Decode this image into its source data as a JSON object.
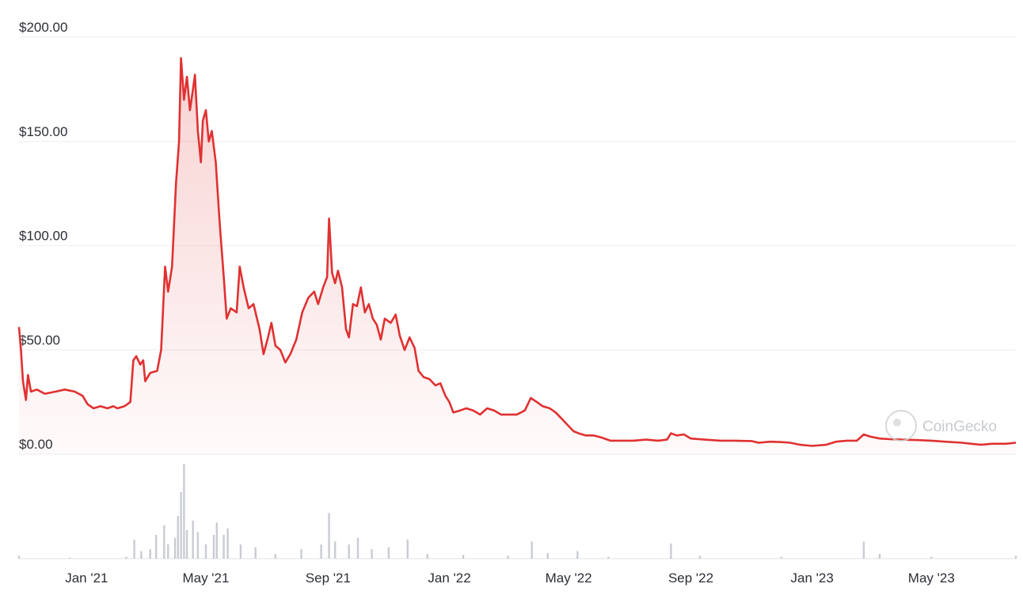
{
  "chart_data": {
    "type": "area",
    "currency_prefix": "$",
    "y_ticks": [
      {
        "value": 0,
        "label": "$0.00"
      },
      {
        "value": 50,
        "label": "$50.00"
      },
      {
        "value": 100,
        "label": "$100.00"
      },
      {
        "value": 150,
        "label": "$150.00"
      },
      {
        "value": 200,
        "label": "$200.00"
      }
    ],
    "ylim": [
      0,
      200
    ],
    "xlim": [
      "2020-10-25",
      "2023-07-25"
    ],
    "x_ticks": [
      {
        "date": "2021-01-01",
        "label": "Jan '21"
      },
      {
        "date": "2021-05-01",
        "label": "May '21"
      },
      {
        "date": "2021-09-01",
        "label": "Sep '21"
      },
      {
        "date": "2022-01-01",
        "label": "Jan '22"
      },
      {
        "date": "2022-05-01",
        "label": "May '22"
      },
      {
        "date": "2022-09-01",
        "label": "Sep '22"
      },
      {
        "date": "2023-01-01",
        "label": "Jan '23"
      },
      {
        "date": "2023-05-01",
        "label": "May '23"
      }
    ],
    "series": [
      {
        "role": "price",
        "color": "#e03131",
        "points": [
          [
            "2020-10-25",
            61
          ],
          [
            "2020-10-27",
            50
          ],
          [
            "2020-10-29",
            35
          ],
          [
            "2020-11-01",
            26
          ],
          [
            "2020-11-03",
            38
          ],
          [
            "2020-11-06",
            30
          ],
          [
            "2020-11-12",
            31
          ],
          [
            "2020-11-20",
            29
          ],
          [
            "2020-12-01",
            30
          ],
          [
            "2020-12-10",
            31
          ],
          [
            "2020-12-20",
            30
          ],
          [
            "2020-12-28",
            28
          ],
          [
            "2021-01-02",
            24
          ],
          [
            "2021-01-08",
            22
          ],
          [
            "2021-01-15",
            23
          ],
          [
            "2021-01-22",
            22
          ],
          [
            "2021-01-28",
            23
          ],
          [
            "2021-02-01",
            22
          ],
          [
            "2021-02-08",
            23
          ],
          [
            "2021-02-14",
            25
          ],
          [
            "2021-02-17",
            45
          ],
          [
            "2021-02-20",
            47
          ],
          [
            "2021-02-24",
            43
          ],
          [
            "2021-02-27",
            45
          ],
          [
            "2021-03-01",
            35
          ],
          [
            "2021-03-06",
            39
          ],
          [
            "2021-03-13",
            40
          ],
          [
            "2021-03-17",
            50
          ],
          [
            "2021-03-21",
            90
          ],
          [
            "2021-03-24",
            78
          ],
          [
            "2021-03-28",
            90
          ],
          [
            "2021-04-01",
            130
          ],
          [
            "2021-04-04",
            150
          ],
          [
            "2021-04-06",
            190
          ],
          [
            "2021-04-09",
            170
          ],
          [
            "2021-04-12",
            181
          ],
          [
            "2021-04-15",
            165
          ],
          [
            "2021-04-18",
            175
          ],
          [
            "2021-04-20",
            182
          ],
          [
            "2021-04-23",
            155
          ],
          [
            "2021-04-26",
            140
          ],
          [
            "2021-04-28",
            160
          ],
          [
            "2021-05-01",
            165
          ],
          [
            "2021-05-04",
            150
          ],
          [
            "2021-05-07",
            155
          ],
          [
            "2021-05-11",
            140
          ],
          [
            "2021-05-15",
            110
          ],
          [
            "2021-05-19",
            85
          ],
          [
            "2021-05-22",
            65
          ],
          [
            "2021-05-26",
            70
          ],
          [
            "2021-06-01",
            68
          ],
          [
            "2021-06-04",
            90
          ],
          [
            "2021-06-08",
            80
          ],
          [
            "2021-06-13",
            70
          ],
          [
            "2021-06-18",
            72
          ],
          [
            "2021-06-24",
            60
          ],
          [
            "2021-06-28",
            48
          ],
          [
            "2021-07-02",
            55
          ],
          [
            "2021-07-06",
            63
          ],
          [
            "2021-07-10",
            52
          ],
          [
            "2021-07-15",
            50
          ],
          [
            "2021-07-20",
            44
          ],
          [
            "2021-07-25",
            48
          ],
          [
            "2021-07-31",
            55
          ],
          [
            "2021-08-06",
            68
          ],
          [
            "2021-08-12",
            75
          ],
          [
            "2021-08-18",
            78
          ],
          [
            "2021-08-22",
            72
          ],
          [
            "2021-08-27",
            80
          ],
          [
            "2021-08-31",
            85
          ],
          [
            "2021-09-02",
            113
          ],
          [
            "2021-09-05",
            87
          ],
          [
            "2021-09-08",
            82
          ],
          [
            "2021-09-11",
            88
          ],
          [
            "2021-09-15",
            80
          ],
          [
            "2021-09-19",
            60
          ],
          [
            "2021-09-22",
            56
          ],
          [
            "2021-09-26",
            72
          ],
          [
            "2021-09-30",
            71
          ],
          [
            "2021-10-04",
            80
          ],
          [
            "2021-10-08",
            68
          ],
          [
            "2021-10-12",
            72
          ],
          [
            "2021-10-16",
            65
          ],
          [
            "2021-10-20",
            62
          ],
          [
            "2021-10-24",
            55
          ],
          [
            "2021-10-28",
            65
          ],
          [
            "2021-11-03",
            63
          ],
          [
            "2021-11-08",
            67
          ],
          [
            "2021-11-12",
            57
          ],
          [
            "2021-11-17",
            50
          ],
          [
            "2021-11-22",
            56
          ],
          [
            "2021-11-27",
            51
          ],
          [
            "2021-12-01",
            40
          ],
          [
            "2021-12-06",
            37
          ],
          [
            "2021-12-12",
            36
          ],
          [
            "2021-12-18",
            33
          ],
          [
            "2021-12-23",
            34
          ],
          [
            "2021-12-28",
            28
          ],
          [
            "2022-01-01",
            25
          ],
          [
            "2022-01-05",
            20
          ],
          [
            "2022-01-12",
            21
          ],
          [
            "2022-01-18",
            22
          ],
          [
            "2022-01-25",
            21
          ],
          [
            "2022-02-01",
            19
          ],
          [
            "2022-02-08",
            22
          ],
          [
            "2022-02-15",
            21
          ],
          [
            "2022-02-22",
            19
          ],
          [
            "2022-03-01",
            19
          ],
          [
            "2022-03-10",
            19
          ],
          [
            "2022-03-18",
            21
          ],
          [
            "2022-03-24",
            27
          ],
          [
            "2022-03-30",
            25
          ],
          [
            "2022-04-05",
            23
          ],
          [
            "2022-04-12",
            22
          ],
          [
            "2022-04-18",
            20
          ],
          [
            "2022-04-24",
            17
          ],
          [
            "2022-04-30",
            14
          ],
          [
            "2022-05-06",
            11
          ],
          [
            "2022-05-11",
            10
          ],
          [
            "2022-05-18",
            9
          ],
          [
            "2022-05-26",
            9
          ],
          [
            "2022-06-03",
            8
          ],
          [
            "2022-06-12",
            6.5
          ],
          [
            "2022-06-24",
            6.5
          ],
          [
            "2022-07-05",
            6.5
          ],
          [
            "2022-07-18",
            7
          ],
          [
            "2022-07-30",
            6.5
          ],
          [
            "2022-08-08",
            7
          ],
          [
            "2022-08-12",
            10
          ],
          [
            "2022-08-18",
            9
          ],
          [
            "2022-08-25",
            9.5
          ],
          [
            "2022-09-01",
            7.5
          ],
          [
            "2022-09-15",
            7
          ],
          [
            "2022-10-01",
            6.5
          ],
          [
            "2022-10-15",
            6.5
          ],
          [
            "2022-11-01",
            6.3
          ],
          [
            "2022-11-08",
            5.5
          ],
          [
            "2022-11-20",
            6
          ],
          [
            "2022-12-01",
            5.8
          ],
          [
            "2022-12-10",
            5.5
          ],
          [
            "2022-12-20",
            4.5
          ],
          [
            "2023-01-01",
            4
          ],
          [
            "2023-01-15",
            4.5
          ],
          [
            "2023-01-25",
            6
          ],
          [
            "2023-02-05",
            6.5
          ],
          [
            "2023-02-15",
            6.5
          ],
          [
            "2023-02-22",
            9.5
          ],
          [
            "2023-02-28",
            8.5
          ],
          [
            "2023-03-10",
            7.5
          ],
          [
            "2023-03-20",
            7.2
          ],
          [
            "2023-04-01",
            7
          ],
          [
            "2023-04-15",
            6.8
          ],
          [
            "2023-05-01",
            6.5
          ],
          [
            "2023-05-15",
            6
          ],
          [
            "2023-06-01",
            5.5
          ],
          [
            "2023-06-10",
            5
          ],
          [
            "2023-06-20",
            4.5
          ],
          [
            "2023-07-01",
            5
          ],
          [
            "2023-07-15",
            5
          ],
          [
            "2023-07-25",
            5.5
          ]
        ]
      },
      {
        "role": "volume",
        "color": "#c9ccd3",
        "relative_scale_max": 100,
        "points": [
          [
            "2020-10-25",
            3
          ],
          [
            "2020-12-15",
            1
          ],
          [
            "2021-02-10",
            2
          ],
          [
            "2021-02-18",
            20
          ],
          [
            "2021-02-25",
            8
          ],
          [
            "2021-03-06",
            10
          ],
          [
            "2021-03-12",
            25
          ],
          [
            "2021-03-20",
            35
          ],
          [
            "2021-03-24",
            15
          ],
          [
            "2021-03-31",
            22
          ],
          [
            "2021-04-03",
            45
          ],
          [
            "2021-04-06",
            70
          ],
          [
            "2021-04-09",
            100
          ],
          [
            "2021-04-12",
            30
          ],
          [
            "2021-04-18",
            40
          ],
          [
            "2021-04-23",
            28
          ],
          [
            "2021-05-01",
            15
          ],
          [
            "2021-05-09",
            25
          ],
          [
            "2021-05-12",
            38
          ],
          [
            "2021-05-19",
            25
          ],
          [
            "2021-05-23",
            32
          ],
          [
            "2021-06-05",
            15
          ],
          [
            "2021-06-20",
            12
          ],
          [
            "2021-07-10",
            5
          ],
          [
            "2021-08-05",
            10
          ],
          [
            "2021-08-25",
            15
          ],
          [
            "2021-09-02",
            48
          ],
          [
            "2021-09-08",
            18
          ],
          [
            "2021-09-22",
            15
          ],
          [
            "2021-10-01",
            22
          ],
          [
            "2021-10-15",
            10
          ],
          [
            "2021-11-01",
            12
          ],
          [
            "2021-11-20",
            20
          ],
          [
            "2021-12-10",
            5
          ],
          [
            "2022-01-15",
            4
          ],
          [
            "2022-03-01",
            3
          ],
          [
            "2022-03-25",
            18
          ],
          [
            "2022-04-10",
            6
          ],
          [
            "2022-05-10",
            8
          ],
          [
            "2022-06-10",
            2
          ],
          [
            "2022-08-12",
            16
          ],
          [
            "2022-09-10",
            3
          ],
          [
            "2022-12-01",
            2
          ],
          [
            "2023-02-22",
            18
          ],
          [
            "2023-03-10",
            5
          ],
          [
            "2023-05-01",
            2
          ],
          [
            "2023-07-25",
            3
          ]
        ]
      }
    ]
  },
  "watermark": {
    "text": "CoinGecko",
    "icon": "coingecko-logo-icon"
  }
}
